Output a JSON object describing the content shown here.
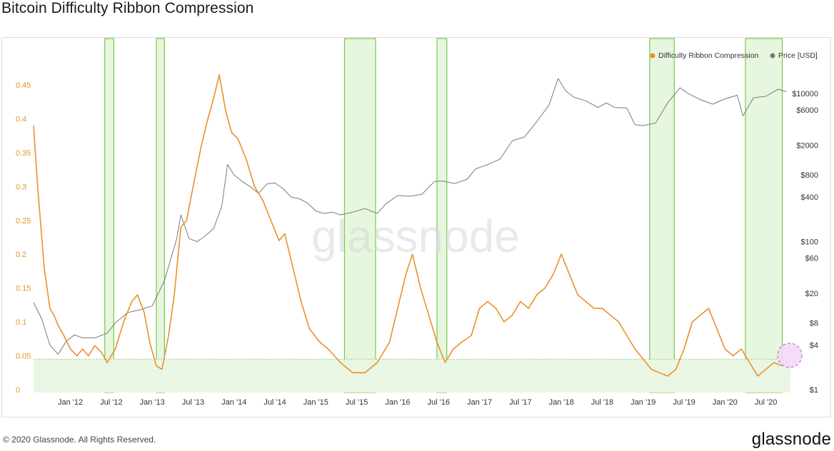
{
  "title": "Bitcoin Difficulty Ribbon Compression",
  "footer": {
    "copyright": "© 2020 Glassnode. All Rights Reserved.",
    "logo": "glassnode"
  },
  "watermark": "glassnode",
  "colors": {
    "ribbon": "#e8922b",
    "price": "#7a7a7a",
    "highlight_fill": "#dff3d3",
    "highlight_stroke": "#78c850",
    "threshold_fill": "#e9f6e4",
    "circle": "#c070e0"
  },
  "chart_data": {
    "type": "line",
    "title": "Bitcoin Difficulty Ribbon Compression",
    "x_ticks": [
      "Jan '12",
      "Jul '12",
      "Jan '13",
      "Jul '13",
      "Jan '14",
      "Jul '14",
      "Jan '15",
      "Jul '15",
      "Jan '16",
      "Jul '16",
      "Jan '17",
      "Jul '17",
      "Jan '18",
      "Jul '18",
      "Jan '19",
      "Jul '19",
      "Jan '20",
      "Jul '20"
    ],
    "x_ticks_t": [
      2012.0,
      2012.5,
      2013.0,
      2013.5,
      2014.0,
      2014.5,
      2015.0,
      2015.5,
      2016.0,
      2016.5,
      2017.0,
      2017.5,
      2018.0,
      2018.5,
      2019.0,
      2019.5,
      2020.0,
      2020.5
    ],
    "x_range": [
      2011.55,
      2020.8
    ],
    "left_axis": {
      "ticks": [
        "0",
        "0.05",
        "0.1",
        "0.15",
        "0.2",
        "0.25",
        "0.3",
        "0.35",
        "0.4",
        "0.45"
      ],
      "values": [
        0,
        0.05,
        0.1,
        0.15,
        0.2,
        0.25,
        0.3,
        0.35,
        0.4,
        0.45
      ],
      "range": [
        0,
        0.47
      ]
    },
    "right_axis": {
      "scale": "log",
      "ticks": [
        "$1",
        "$4",
        "$8",
        "$20",
        "$60",
        "$100",
        "$400",
        "$800",
        "$2000",
        "$6000",
        "$10000"
      ],
      "values": [
        1,
        4,
        8,
        20,
        60,
        100,
        400,
        800,
        2000,
        6000,
        10000
      ],
      "range": [
        1,
        20000
      ]
    },
    "threshold": 0.045,
    "legend": {
      "position": "top-right",
      "items": [
        "Difficulty Ribbon Compression",
        "Price [USD]"
      ]
    },
    "highlight_bands": [
      [
        2012.42,
        2012.53
      ],
      [
        2013.05,
        2013.15
      ],
      [
        2015.35,
        2015.73
      ],
      [
        2016.48,
        2016.6
      ],
      [
        2019.08,
        2019.38
      ],
      [
        2020.25,
        2020.7
      ]
    ],
    "series": [
      {
        "name": "Difficulty Ribbon Compression",
        "axis": "left",
        "points": [
          [
            2011.55,
            0.39
          ],
          [
            2011.6,
            0.3
          ],
          [
            2011.68,
            0.18
          ],
          [
            2011.75,
            0.12
          ],
          [
            2011.8,
            0.11
          ],
          [
            2011.85,
            0.095
          ],
          [
            2011.92,
            0.08
          ],
          [
            2012.0,
            0.06
          ],
          [
            2012.08,
            0.05
          ],
          [
            2012.15,
            0.06
          ],
          [
            2012.22,
            0.05
          ],
          [
            2012.3,
            0.065
          ],
          [
            2012.38,
            0.055
          ],
          [
            2012.45,
            0.04
          ],
          [
            2012.55,
            0.06
          ],
          [
            2012.65,
            0.1
          ],
          [
            2012.75,
            0.13
          ],
          [
            2012.82,
            0.14
          ],
          [
            2012.9,
            0.115
          ],
          [
            2012.97,
            0.07
          ],
          [
            2013.05,
            0.035
          ],
          [
            2013.12,
            0.03
          ],
          [
            2013.2,
            0.08
          ],
          [
            2013.27,
            0.14
          ],
          [
            2013.35,
            0.24
          ],
          [
            2013.42,
            0.25
          ],
          [
            2013.5,
            0.3
          ],
          [
            2013.6,
            0.36
          ],
          [
            2013.68,
            0.4
          ],
          [
            2013.75,
            0.43
          ],
          [
            2013.82,
            0.465
          ],
          [
            2013.9,
            0.41
          ],
          [
            2013.97,
            0.38
          ],
          [
            2014.05,
            0.37
          ],
          [
            2014.15,
            0.34
          ],
          [
            2014.25,
            0.3
          ],
          [
            2014.35,
            0.28
          ],
          [
            2014.45,
            0.25
          ],
          [
            2014.55,
            0.22
          ],
          [
            2014.62,
            0.23
          ],
          [
            2014.72,
            0.18
          ],
          [
            2014.82,
            0.13
          ],
          [
            2014.92,
            0.09
          ],
          [
            2015.05,
            0.07
          ],
          [
            2015.15,
            0.06
          ],
          [
            2015.3,
            0.04
          ],
          [
            2015.45,
            0.025
          ],
          [
            2015.6,
            0.025
          ],
          [
            2015.75,
            0.04
          ],
          [
            2015.9,
            0.07
          ],
          [
            2016.0,
            0.12
          ],
          [
            2016.1,
            0.17
          ],
          [
            2016.18,
            0.2
          ],
          [
            2016.28,
            0.15
          ],
          [
            2016.38,
            0.11
          ],
          [
            2016.48,
            0.07
          ],
          [
            2016.58,
            0.04
          ],
          [
            2016.68,
            0.06
          ],
          [
            2016.78,
            0.07
          ],
          [
            2016.9,
            0.08
          ],
          [
            2017.0,
            0.12
          ],
          [
            2017.1,
            0.13
          ],
          [
            2017.2,
            0.12
          ],
          [
            2017.3,
            0.1
          ],
          [
            2017.4,
            0.11
          ],
          [
            2017.5,
            0.13
          ],
          [
            2017.6,
            0.12
          ],
          [
            2017.7,
            0.14
          ],
          [
            2017.8,
            0.15
          ],
          [
            2017.9,
            0.17
          ],
          [
            2018.0,
            0.2
          ],
          [
            2018.1,
            0.17
          ],
          [
            2018.2,
            0.14
          ],
          [
            2018.3,
            0.13
          ],
          [
            2018.4,
            0.12
          ],
          [
            2018.5,
            0.12
          ],
          [
            2018.6,
            0.11
          ],
          [
            2018.7,
            0.1
          ],
          [
            2018.8,
            0.08
          ],
          [
            2018.9,
            0.06
          ],
          [
            2019.0,
            0.045
          ],
          [
            2019.1,
            0.03
          ],
          [
            2019.2,
            0.025
          ],
          [
            2019.3,
            0.02
          ],
          [
            2019.4,
            0.03
          ],
          [
            2019.5,
            0.06
          ],
          [
            2019.6,
            0.1
          ],
          [
            2019.7,
            0.11
          ],
          [
            2019.8,
            0.12
          ],
          [
            2019.9,
            0.09
          ],
          [
            2020.0,
            0.06
          ],
          [
            2020.1,
            0.05
          ],
          [
            2020.2,
            0.06
          ],
          [
            2020.3,
            0.04
          ],
          [
            2020.4,
            0.02
          ],
          [
            2020.5,
            0.03
          ],
          [
            2020.6,
            0.04
          ],
          [
            2020.7,
            0.035
          ]
        ]
      },
      {
        "name": "Price [USD]",
        "axis": "right",
        "points": [
          [
            2011.55,
            15
          ],
          [
            2011.65,
            9
          ],
          [
            2011.75,
            4
          ],
          [
            2011.85,
            3
          ],
          [
            2011.95,
            4.5
          ],
          [
            2012.05,
            5.5
          ],
          [
            2012.15,
            5
          ],
          [
            2012.3,
            5
          ],
          [
            2012.45,
            5.8
          ],
          [
            2012.55,
            8
          ],
          [
            2012.7,
            11
          ],
          [
            2012.85,
            12
          ],
          [
            2013.0,
            13.5
          ],
          [
            2013.15,
            30
          ],
          [
            2013.3,
            110
          ],
          [
            2013.35,
            230
          ],
          [
            2013.45,
            110
          ],
          [
            2013.55,
            100
          ],
          [
            2013.65,
            120
          ],
          [
            2013.75,
            150
          ],
          [
            2013.85,
            300
          ],
          [
            2013.92,
            1100
          ],
          [
            2014.0,
            800
          ],
          [
            2014.1,
            650
          ],
          [
            2014.2,
            550
          ],
          [
            2014.3,
            450
          ],
          [
            2014.4,
            600
          ],
          [
            2014.5,
            620
          ],
          [
            2014.6,
            520
          ],
          [
            2014.7,
            400
          ],
          [
            2014.8,
            380
          ],
          [
            2014.9,
            330
          ],
          [
            2015.0,
            260
          ],
          [
            2015.1,
            240
          ],
          [
            2015.2,
            250
          ],
          [
            2015.3,
            230
          ],
          [
            2015.45,
            250
          ],
          [
            2015.6,
            280
          ],
          [
            2015.75,
            240
          ],
          [
            2015.85,
            320
          ],
          [
            2016.0,
            420
          ],
          [
            2016.15,
            410
          ],
          [
            2016.3,
            440
          ],
          [
            2016.45,
            650
          ],
          [
            2016.55,
            660
          ],
          [
            2016.7,
            610
          ],
          [
            2016.85,
            700
          ],
          [
            2016.95,
            960
          ],
          [
            2017.1,
            1100
          ],
          [
            2017.25,
            1300
          ],
          [
            2017.4,
            2300
          ],
          [
            2017.55,
            2600
          ],
          [
            2017.7,
            4200
          ],
          [
            2017.85,
            7000
          ],
          [
            2017.96,
            16000
          ],
          [
            2018.05,
            11000
          ],
          [
            2018.15,
            9000
          ],
          [
            2018.3,
            8000
          ],
          [
            2018.45,
            6500
          ],
          [
            2018.55,
            7500
          ],
          [
            2018.65,
            6500
          ],
          [
            2018.8,
            6400
          ],
          [
            2018.9,
            3800
          ],
          [
            2019.0,
            3700
          ],
          [
            2019.15,
            4000
          ],
          [
            2019.3,
            7500
          ],
          [
            2019.45,
            12000
          ],
          [
            2019.55,
            10000
          ],
          [
            2019.7,
            8300
          ],
          [
            2019.85,
            7200
          ],
          [
            2020.0,
            8500
          ],
          [
            2020.15,
            9500
          ],
          [
            2020.22,
            5000
          ],
          [
            2020.35,
            8800
          ],
          [
            2020.5,
            9200
          ],
          [
            2020.65,
            11500
          ],
          [
            2020.75,
            10600
          ]
        ]
      }
    ]
  }
}
